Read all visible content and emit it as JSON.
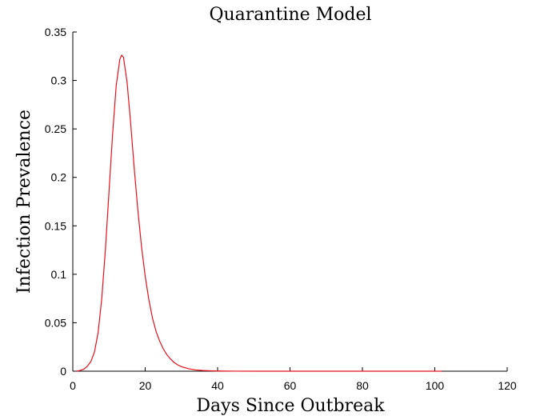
{
  "chart_data": {
    "type": "line",
    "title": "Quarantine Model",
    "xlabel": "Days Since Outbreak",
    "ylabel": "Infection Prevalence",
    "xlim": [
      0,
      120
    ],
    "ylim": [
      0,
      0.35
    ],
    "xticks": [
      0,
      20,
      40,
      60,
      80,
      100,
      120
    ],
    "xtick_labels": [
      "0",
      "20",
      "40",
      "60",
      "80",
      "100",
      "120"
    ],
    "yticks": [
      0,
      0.05,
      0.1,
      0.15,
      0.2,
      0.25,
      0.3,
      0.35
    ],
    "ytick_labels": [
      "0",
      "0.05",
      "0.1",
      "0.15",
      "0.2",
      "0.25",
      "0.3",
      "0.35"
    ],
    "grid": false,
    "series": [
      {
        "color": "#e8101a",
        "x": [
          1,
          2,
          3,
          4,
          5,
          6,
          7,
          8,
          9,
          10,
          11,
          12,
          13,
          13.5,
          14,
          15,
          16,
          17,
          18,
          19,
          20,
          21,
          22,
          23,
          24,
          25,
          26,
          27,
          28,
          29,
          30,
          32,
          34,
          36,
          38,
          40,
          45,
          50,
          60,
          70,
          80,
          90,
          102
        ],
        "y": [
          0.0,
          0.0008,
          0.002,
          0.005,
          0.01,
          0.02,
          0.04,
          0.075,
          0.125,
          0.185,
          0.245,
          0.295,
          0.322,
          0.326,
          0.324,
          0.298,
          0.255,
          0.208,
          0.165,
          0.128,
          0.098,
          0.074,
          0.055,
          0.041,
          0.031,
          0.023,
          0.017,
          0.0125,
          0.009,
          0.0065,
          0.0047,
          0.0025,
          0.0013,
          0.0007,
          0.0004,
          0.0002,
          5e-05,
          0.0,
          0.0,
          0.0,
          0.0,
          0.0,
          0.0
        ]
      }
    ]
  }
}
